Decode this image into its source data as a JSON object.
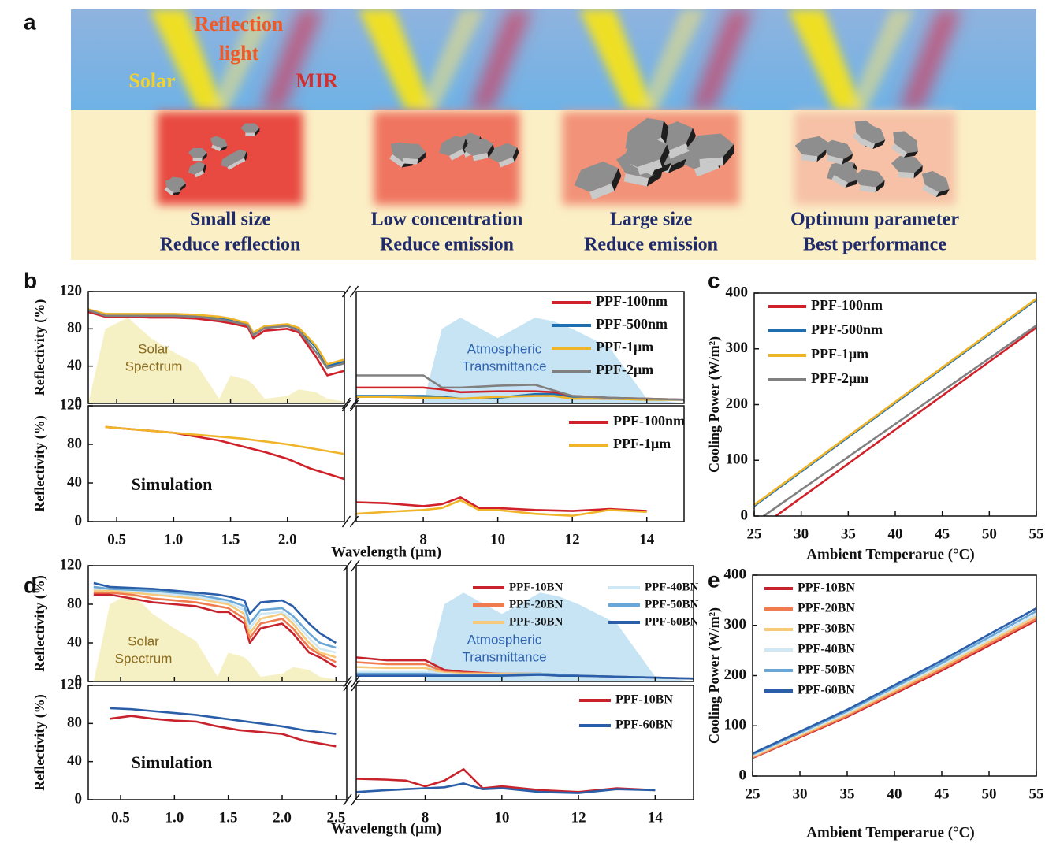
{
  "panel_a": {
    "label": "a",
    "beams": {
      "reflection": [
        "Reflection",
        "light"
      ],
      "solar": "Solar",
      "mir": "MIR"
    },
    "cases": [
      {
        "lines": [
          "Small size",
          "Reduce reflection"
        ]
      },
      {
        "lines": [
          "Low concentration",
          "Reduce emission"
        ]
      },
      {
        "lines": [
          "Large size",
          "Reduce emission"
        ]
      },
      {
        "lines": [
          "Optimum parameter",
          "Best performance"
        ]
      }
    ]
  },
  "chart_data": [
    {
      "type": "line",
      "panel_label": "b",
      "ylabel": "Reflectivity (%)",
      "x": [
        0.25,
        0.4,
        0.6,
        0.8,
        1.0,
        1.2,
        1.4,
        1.5,
        1.65,
        1.7,
        1.8,
        2.0,
        2.1,
        2.25,
        2.35,
        2.5,
        6.2,
        7,
        8,
        8.5,
        9,
        10,
        11,
        11.5,
        12,
        13,
        14,
        15
      ],
      "x_segments": [
        [
          0.25,
          2.5
        ],
        [
          6.2,
          15
        ]
      ],
      "xticks": [
        0.5,
        {
          "value": 1,
          "label": "1.0"
        },
        1.5,
        {
          "value": 2,
          "label": "2.0"
        },
        8,
        10,
        12,
        14
      ],
      "xtick_labels": false,
      "ylim": [
        0,
        120
      ],
      "yticks": [
        0,
        40,
        80,
        120
      ],
      "areas": [
        {
          "label": [
            "Solar",
            "Spectrum"
          ],
          "color": "#f5eebb",
          "label_color": "#8a6a1c",
          "values": [
            0,
            80,
            92,
            70,
            55,
            42,
            5,
            30,
            25,
            20,
            5,
            8,
            15,
            12,
            5,
            2,
            null,
            null,
            null,
            null,
            null,
            null,
            null,
            null,
            null,
            null,
            null,
            null
          ]
        },
        {
          "label": [
            "Atmospheric",
            "Transmittance"
          ],
          "color": "#bcdff2",
          "label_color": "#2f62b0",
          "values": [
            null,
            null,
            null,
            null,
            null,
            null,
            null,
            null,
            null,
            null,
            null,
            null,
            null,
            null,
            null,
            null,
            0,
            0,
            0,
            80,
            92,
            70,
            92,
            88,
            80,
            60,
            5,
            0
          ]
        }
      ],
      "series": [
        {
          "name": "PPF-100nm",
          "color": "#d0202a",
          "values": [
            98,
            93,
            93,
            92,
            92,
            91,
            88,
            86,
            82,
            70,
            78,
            80,
            76,
            50,
            30,
            35,
            17,
            17,
            17,
            15,
            12,
            13,
            13,
            12,
            8,
            6,
            5,
            4
          ]
        },
        {
          "name": "PPF-500nm",
          "color": "#1f6fb0",
          "values": [
            100,
            95,
            95,
            95,
            95,
            94,
            92,
            90,
            85,
            75,
            82,
            84,
            80,
            60,
            40,
            45,
            8,
            8,
            8,
            7,
            5,
            6,
            10,
            10,
            6,
            5,
            4,
            4
          ]
        },
        {
          "name": "PPF-1μm",
          "color": "#f0b429",
          "values": [
            101,
            96,
            96,
            96,
            96,
            95,
            93,
            91,
            86,
            76,
            83,
            85,
            81,
            62,
            42,
            47,
            7,
            7,
            6,
            6,
            5,
            7,
            8,
            8,
            5,
            5,
            4,
            4
          ]
        },
        {
          "name": "PPF-2μm",
          "color": "#808080",
          "values": [
            100,
            94,
            94,
            94,
            94,
            93,
            90,
            88,
            84,
            73,
            81,
            83,
            78,
            55,
            38,
            43,
            30,
            30,
            30,
            17,
            17,
            19,
            20,
            14,
            8,
            6,
            5,
            4
          ]
        }
      ]
    },
    {
      "type": "line",
      "ylabel": "Reflectivity (%)",
      "xlabel": "Wavelength (μm)",
      "annotation": "Simulation",
      "x": [
        0.4,
        0.6,
        0.8,
        1.0,
        1.2,
        1.4,
        1.6,
        1.8,
        2.0,
        2.2,
        2.5,
        6.2,
        7,
        8,
        8.5,
        9,
        9.5,
        10,
        11,
        12,
        13,
        14
      ],
      "x_segments": [
        [
          0.25,
          2.5
        ],
        [
          6.2,
          15
        ]
      ],
      "xticks": [
        0.5,
        {
          "value": 1,
          "label": "1.0"
        },
        1.5,
        {
          "value": 2,
          "label": "2.0"
        },
        8,
        10,
        12,
        14
      ],
      "ylim": [
        0,
        120
      ],
      "yticks": [
        0,
        40,
        80,
        120
      ],
      "series": [
        {
          "name": "PPF-100nm",
          "color": "#d0202a",
          "values": [
            98,
            96,
            94,
            92,
            88,
            84,
            78,
            72,
            65,
            55,
            44,
            20,
            19,
            16,
            18,
            25,
            14,
            14,
            12,
            11,
            13,
            11
          ]
        },
        {
          "name": "PPF-1μm",
          "color": "#f0b429",
          "values": [
            98,
            96,
            94,
            92,
            90,
            88,
            86,
            83,
            80,
            76,
            70,
            8,
            10,
            12,
            14,
            22,
            12,
            12,
            8,
            6,
            12,
            10
          ]
        }
      ]
    },
    {
      "type": "line",
      "panel_label": "c",
      "ylabel": "Cooling Power (W/m²)",
      "xlabel": "Ambient Temperarue (°C)",
      "xlim": [
        25,
        55
      ],
      "xticks": [
        25,
        30,
        35,
        40,
        45,
        50,
        55
      ],
      "ylim": [
        0,
        400
      ],
      "yticks": [
        0,
        100,
        200,
        300,
        400
      ],
      "series": [
        {
          "name": "PPF-100nm",
          "color": "#d0202a",
          "x": [
            27.3,
            55
          ],
          "values": [
            0,
            338
          ]
        },
        {
          "name": "PPF-500nm",
          "color": "#1f6fb0",
          "x": [
            25,
            55
          ],
          "values": [
            18,
            388
          ]
        },
        {
          "name": "PPF-1μm",
          "color": "#f0b429",
          "x": [
            25,
            55
          ],
          "values": [
            20,
            390
          ]
        },
        {
          "name": "PPF-2μm",
          "color": "#808080",
          "x": [
            26,
            55
          ],
          "values": [
            0,
            342
          ]
        }
      ]
    },
    {
      "type": "line",
      "panel_label": "d",
      "ylabel": "Reflectivity (%)",
      "x": [
        0.25,
        0.4,
        0.6,
        0.8,
        1.0,
        1.2,
        1.4,
        1.5,
        1.65,
        1.7,
        1.8,
        2.0,
        2.1,
        2.25,
        2.35,
        2.5,
        6.2,
        7,
        8,
        8.5,
        9,
        10,
        11,
        11.5,
        12,
        13,
        14,
        15
      ],
      "x_segments": [
        [
          0.2,
          2.6
        ],
        [
          6.2,
          15
        ]
      ],
      "xticks": [
        0.5,
        {
          "value": 1,
          "label": "1.0"
        },
        1.5,
        {
          "value": 2,
          "label": "2.0"
        },
        2.5,
        8,
        10,
        12,
        14
      ],
      "xtick_labels": false,
      "ylim": [
        0,
        120
      ],
      "yticks": [
        0,
        40,
        80,
        120
      ],
      "areas": [
        {
          "label": [
            "Solar",
            "Spectrum"
          ],
          "color": "#f5eebb",
          "label_color": "#8a6a1c",
          "values": [
            0,
            80,
            92,
            70,
            55,
            42,
            5,
            30,
            25,
            20,
            5,
            8,
            15,
            12,
            5,
            2,
            null,
            null,
            null,
            null,
            null,
            null,
            null,
            null,
            null,
            null,
            null,
            null
          ]
        },
        {
          "label": [
            "Atmospheric",
            "Transmittance"
          ],
          "color": "#bcdff2",
          "label_color": "#2f62b0",
          "values": [
            null,
            null,
            null,
            null,
            null,
            null,
            null,
            null,
            null,
            null,
            null,
            null,
            null,
            null,
            null,
            null,
            0,
            0,
            0,
            80,
            92,
            70,
            92,
            88,
            80,
            60,
            5,
            0
          ]
        }
      ],
      "series": [
        {
          "name": "PPF-10BN",
          "color": "#c8232c",
          "values": [
            90,
            90,
            86,
            82,
            80,
            78,
            72,
            72,
            60,
            40,
            55,
            60,
            50,
            30,
            25,
            15,
            25,
            22,
            22,
            12,
            10,
            8,
            8,
            7,
            6,
            5,
            4,
            3
          ]
        },
        {
          "name": "PPF-20BN",
          "color": "#ef7b4f",
          "values": [
            92,
            92,
            90,
            86,
            84,
            82,
            78,
            76,
            65,
            45,
            60,
            65,
            55,
            35,
            28,
            20,
            20,
            18,
            18,
            10,
            9,
            8,
            8,
            7,
            6,
            5,
            4,
            3
          ]
        },
        {
          "name": "PPF-30BN",
          "color": "#f7c97a",
          "values": [
            94,
            94,
            92,
            90,
            88,
            86,
            82,
            80,
            70,
            50,
            65,
            70,
            60,
            40,
            30,
            25,
            15,
            14,
            14,
            9,
            8,
            8,
            8,
            7,
            6,
            5,
            4,
            3
          ]
        },
        {
          "name": "PPF-40BN",
          "color": "#cfe8f3",
          "values": [
            96,
            96,
            94,
            92,
            90,
            88,
            84,
            82,
            74,
            55,
            70,
            72,
            64,
            45,
            34,
            30,
            10,
            10,
            10,
            8,
            7,
            7,
            8,
            7,
            6,
            5,
            4,
            3
          ]
        },
        {
          "name": "PPF-50BN",
          "color": "#6aa6d6",
          "values": [
            98,
            96,
            95,
            94,
            92,
            90,
            86,
            84,
            78,
            60,
            74,
            76,
            68,
            50,
            40,
            35,
            8,
            8,
            8,
            7,
            7,
            7,
            8,
            7,
            6,
            5,
            4,
            3
          ]
        },
        {
          "name": "PPF-60BN",
          "color": "#2b5ea8",
          "values": [
            102,
            98,
            97,
            96,
            94,
            92,
            90,
            88,
            84,
            70,
            82,
            84,
            78,
            60,
            50,
            40,
            6,
            6,
            6,
            6,
            6,
            6,
            7,
            6,
            6,
            5,
            4,
            3
          ]
        }
      ]
    },
    {
      "type": "line",
      "ylabel": "Reflectivity (%)",
      "xlabel": "Wavelength (μm)",
      "annotation": "Simulation",
      "x": [
        0.4,
        0.6,
        0.8,
        1.0,
        1.2,
        1.4,
        1.6,
        1.8,
        2.0,
        2.2,
        2.5,
        6.2,
        7,
        7.5,
        8,
        8.5,
        9,
        9.5,
        10,
        11,
        12,
        13,
        14
      ],
      "x_segments": [
        [
          0.2,
          2.6
        ],
        [
          6.2,
          15
        ]
      ],
      "xticks": [
        0.5,
        {
          "value": 1,
          "label": "1.0"
        },
        1.5,
        {
          "value": 2,
          "label": "2.0"
        },
        2.5,
        8,
        10,
        12,
        14
      ],
      "ylim": [
        0,
        120
      ],
      "yticks": [
        0,
        40,
        80,
        120
      ],
      "series": [
        {
          "name": "PPF-10BN",
          "color": "#c8232c",
          "values": [
            85,
            88,
            85,
            83,
            82,
            77,
            73,
            71,
            69,
            62,
            56,
            22,
            21,
            20,
            14,
            20,
            32,
            12,
            14,
            10,
            8,
            12,
            10
          ]
        },
        {
          "name": "PPF-60BN",
          "color": "#2b5ea8",
          "values": [
            96,
            95,
            93,
            91,
            89,
            86,
            83,
            80,
            77,
            73,
            69,
            8,
            10,
            11,
            12,
            13,
            17,
            11,
            12,
            8,
            7,
            11,
            10
          ]
        }
      ]
    },
    {
      "type": "line",
      "panel_label": "e",
      "ylabel": "Cooling Power (W/m²)",
      "xlabel": "Ambient Temperarue (°C)",
      "xlim": [
        25,
        55
      ],
      "xticks": [
        25,
        30,
        35,
        40,
        45,
        50,
        55
      ],
      "ylim": [
        0,
        400
      ],
      "yticks": [
        0,
        100,
        200,
        300,
        400
      ],
      "x": [
        25,
        35,
        45,
        55
      ],
      "series": [
        {
          "name": "PPF-10BN",
          "color": "#c8232c",
          "values": [
            36,
            118,
            210,
            310
          ]
        },
        {
          "name": "PPF-20BN",
          "color": "#ef7b4f",
          "values": [
            37,
            120,
            213,
            313
          ]
        },
        {
          "name": "PPF-30BN",
          "color": "#f7c97a",
          "values": [
            39,
            123,
            217,
            318
          ]
        },
        {
          "name": "PPF-40BN",
          "color": "#cfe8f3",
          "values": [
            41,
            126,
            221,
            322
          ]
        },
        {
          "name": "PPF-50BN",
          "color": "#6aa6d6",
          "values": [
            43,
            129,
            225,
            328
          ]
        },
        {
          "name": "PPF-60BN",
          "color": "#2b5ea8",
          "values": [
            45,
            132,
            230,
            334
          ]
        }
      ]
    }
  ]
}
